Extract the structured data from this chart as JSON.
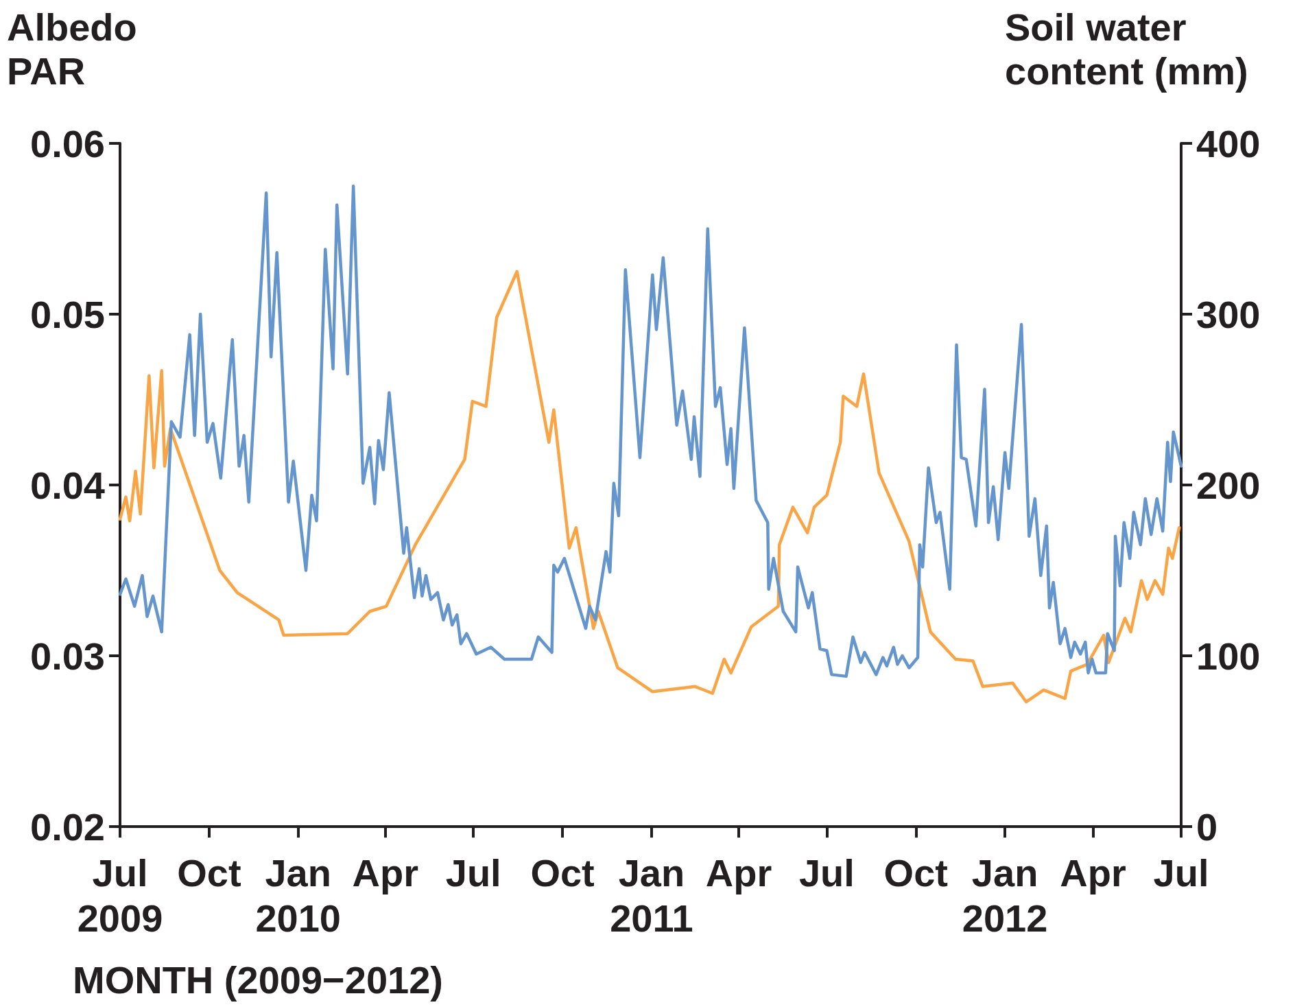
{
  "chart_data": {
    "type": "line",
    "ylabel": "Albedo\nPAR",
    "y2label": "Soil water\ncontent (mm)",
    "xlabel": "MONTH (2009−2012)",
    "xlim": [
      "2009-07-01",
      "2012-07-01"
    ],
    "xticks": [
      {
        "value": "2009-07-01",
        "label": "Jul\n2009"
      },
      {
        "value": "2009-10-01",
        "label": "Oct"
      },
      {
        "value": "2010-01-01",
        "label": "Jan\n2010"
      },
      {
        "value": "2010-04-01",
        "label": "Apr"
      },
      {
        "value": "2010-07-01",
        "label": "Jul"
      },
      {
        "value": "2010-10-01",
        "label": "Oct"
      },
      {
        "value": "2011-01-01",
        "label": "Jan\n2011"
      },
      {
        "value": "2011-04-01",
        "label": "Apr"
      },
      {
        "value": "2011-07-01",
        "label": "Jul"
      },
      {
        "value": "2011-10-01",
        "label": "Oct"
      },
      {
        "value": "2012-01-01",
        "label": "Jan\n2012"
      },
      {
        "value": "2012-04-01",
        "label": "Apr"
      },
      {
        "value": "2012-07-01",
        "label": "Jul"
      }
    ],
    "ylim": [
      0.02,
      0.06
    ],
    "yticks": [
      0.02,
      0.03,
      0.04,
      0.05,
      0.06
    ],
    "y2lim": [
      0,
      400
    ],
    "y2ticks": [
      0,
      100,
      200,
      300,
      400
    ],
    "grid": false,
    "marker": "none",
    "line_style": "solid",
    "series": [
      {
        "color": "#f9a546",
        "x": [
          "2009-07-01",
          "2009-07-07",
          "2009-07-11",
          "2009-07-17",
          "2009-07-22",
          "2009-07-31",
          "2009-08-05",
          "2009-08-13",
          "2009-08-16",
          "2009-08-22",
          "2009-10-12",
          "2009-10-30",
          "2009-12-12",
          "2009-12-17",
          "2010-02-21",
          "2010-03-16",
          "2010-04-02",
          "2010-05-02",
          "2010-06-22",
          "2010-06-30",
          "2010-07-14",
          "2010-07-25",
          "2010-08-15",
          "2010-09-17",
          "2010-09-22",
          "2010-10-08",
          "2010-10-15",
          "2010-11-02",
          "2010-11-07",
          "2010-11-27",
          "2011-01-02",
          "2011-02-15",
          "2011-03-05",
          "2011-03-17",
          "2011-03-24",
          "2011-04-14",
          "2011-05-12",
          "2011-05-13",
          "2011-05-27",
          "2011-06-11",
          "2011-06-18",
          "2011-07-01",
          "2011-07-15",
          "2011-07-18",
          "2011-08-01",
          "2011-08-08",
          "2011-08-24",
          "2011-09-24",
          "2011-10-16",
          "2011-11-11",
          "2011-11-29",
          "2011-12-09",
          "2012-01-09",
          "2012-01-23",
          "2012-02-10",
          "2012-03-03",
          "2012-03-09",
          "2012-03-26",
          "2012-04-12",
          "2012-04-17",
          "2012-05-04",
          "2012-05-10",
          "2012-05-21",
          "2012-05-27",
          "2012-06-04",
          "2012-06-12",
          "2012-06-18",
          "2012-06-22",
          "2012-06-29"
        ],
        "values": [
          0.038,
          0.0393,
          0.0379,
          0.0408,
          0.0383,
          0.0464,
          0.041,
          0.0467,
          0.0411,
          0.0433,
          0.035,
          0.0337,
          0.0321,
          0.0312,
          0.0313,
          0.0326,
          0.0329,
          0.0365,
          0.0415,
          0.0449,
          0.0446,
          0.0498,
          0.0525,
          0.0425,
          0.0444,
          0.0363,
          0.0375,
          0.0316,
          0.0326,
          0.0293,
          0.0279,
          0.0282,
          0.0278,
          0.0298,
          0.029,
          0.0317,
          0.0329,
          0.0365,
          0.0387,
          0.0372,
          0.0387,
          0.0394,
          0.0425,
          0.0452,
          0.0446,
          0.0465,
          0.0407,
          0.0367,
          0.0314,
          0.0298,
          0.0297,
          0.0282,
          0.0284,
          0.0273,
          0.028,
          0.0275,
          0.0291,
          0.0295,
          0.0312,
          0.0296,
          0.0322,
          0.0314,
          0.0344,
          0.0333,
          0.0344,
          0.0336,
          0.0363,
          0.0357,
          0.0375
        ]
      },
      {
        "color": "#6495cd",
        "axis": "y2",
        "x": [
          "2009-07-01",
          "2009-07-07",
          "2009-07-16",
          "2009-07-24",
          "2009-07-29",
          "2009-08-04",
          "2009-08-13",
          "2009-08-23",
          "2009-09-01",
          "2009-09-11",
          "2009-09-16",
          "2009-09-22",
          "2009-09-29",
          "2009-10-05",
          "2009-10-13",
          "2009-10-25",
          "2009-11-01",
          "2009-11-06",
          "2009-11-11",
          "2009-11-29",
          "2009-12-04",
          "2009-12-10",
          "2009-12-22",
          "2009-12-27",
          "2010-01-09",
          "2010-01-15",
          "2010-01-20",
          "2010-01-29",
          "2010-02-06",
          "2010-02-10",
          "2010-02-21",
          "2010-02-27",
          "2010-03-09",
          "2010-03-16",
          "2010-03-21",
          "2010-03-25",
          "2010-03-30",
          "2010-04-05",
          "2010-04-20",
          "2010-04-23",
          "2010-05-01",
          "2010-05-06",
          "2010-05-09",
          "2010-05-13",
          "2010-05-18",
          "2010-05-25",
          "2010-05-31",
          "2010-06-05",
          "2010-06-09",
          "2010-06-14",
          "2010-06-18",
          "2010-06-24",
          "2010-07-04",
          "2010-07-19",
          "2010-08-02",
          "2010-08-30",
          "2010-09-06",
          "2010-09-20",
          "2010-09-22",
          "2010-09-26",
          "2010-10-03",
          "2010-10-25",
          "2010-10-29",
          "2010-11-04",
          "2010-11-15",
          "2010-11-19",
          "2010-11-23",
          "2010-11-28",
          "2010-12-05",
          "2010-12-20",
          "2011-01-02",
          "2011-01-06",
          "2011-01-13",
          "2011-01-27",
          "2011-02-02",
          "2011-02-11",
          "2011-02-14",
          "2011-02-20",
          "2011-02-28",
          "2011-03-08",
          "2011-03-13",
          "2011-03-20",
          "2011-03-24",
          "2011-03-27",
          "2011-04-07",
          "2011-04-19",
          "2011-05-01",
          "2011-05-02",
          "2011-05-07",
          "2011-05-17",
          "2011-05-30",
          "2011-06-01",
          "2011-06-12",
          "2011-06-16",
          "2011-06-24",
          "2011-07-01",
          "2011-07-06",
          "2011-07-21",
          "2011-07-28",
          "2011-08-05",
          "2011-08-09",
          "2011-08-21",
          "2011-08-28",
          "2011-09-01",
          "2011-09-08",
          "2011-09-12",
          "2011-09-17",
          "2011-09-24",
          "2011-10-03",
          "2011-10-05",
          "2011-10-08",
          "2011-10-14",
          "2011-10-22",
          "2011-10-26",
          "2011-11-05",
          "2011-11-12",
          "2011-11-17",
          "2011-11-22",
          "2011-12-02",
          "2011-12-11",
          "2011-12-15",
          "2011-12-20",
          "2011-12-25",
          "2012-01-01",
          "2012-01-05",
          "2012-01-18",
          "2012-01-26",
          "2012-02-01",
          "2012-02-07",
          "2012-02-13",
          "2012-02-16",
          "2012-02-20",
          "2012-02-27",
          "2012-03-03",
          "2012-03-09",
          "2012-03-13",
          "2012-03-19",
          "2012-03-24",
          "2012-03-27",
          "2012-03-31",
          "2012-04-04",
          "2012-04-14",
          "2012-04-16",
          "2012-04-23",
          "2012-04-24",
          "2012-04-29",
          "2012-05-03",
          "2012-05-09",
          "2012-05-13",
          "2012-05-20",
          "2012-05-25",
          "2012-05-31",
          "2012-06-06",
          "2012-06-12",
          "2012-06-17",
          "2012-06-20",
          "2012-06-23",
          "2012-07-01"
        ],
        "values": [
          136,
          145,
          129,
          147,
          123,
          135,
          114,
          237,
          228,
          288,
          229,
          300,
          225,
          236,
          204,
          285,
          211,
          229,
          190,
          371,
          275,
          336,
          190,
          214,
          150,
          194,
          179,
          338,
          268,
          364,
          265,
          375,
          201,
          222,
          189,
          226,
          209,
          254,
          160,
          175,
          134,
          151,
          135,
          147,
          133,
          137,
          121,
          130,
          118,
          124,
          107,
          113,
          101,
          105,
          98,
          98,
          111,
          102,
          153,
          149,
          157,
          116,
          129,
          121,
          161,
          149,
          201,
          182,
          326,
          216,
          323,
          291,
          333,
          235,
          255,
          215,
          240,
          205,
          350,
          246,
          257,
          212,
          233,
          198,
          292,
          191,
          178,
          139,
          157,
          126,
          114,
          152,
          128,
          137,
          104,
          103,
          89,
          88,
          111,
          96,
          102,
          89,
          99,
          94,
          105,
          95,
          100,
          93,
          99,
          165,
          152,
          210,
          178,
          184,
          139,
          282,
          216,
          215,
          176,
          256,
          178,
          199,
          168,
          219,
          198,
          294,
          170,
          192,
          147,
          176,
          128,
          143,
          107,
          116,
          99,
          108,
          101,
          108,
          90,
          98,
          90,
          90,
          113,
          103,
          170,
          141,
          178,
          157,
          184,
          165,
          192,
          171,
          192,
          173,
          225,
          202,
          231,
          211
        ]
      }
    ]
  }
}
